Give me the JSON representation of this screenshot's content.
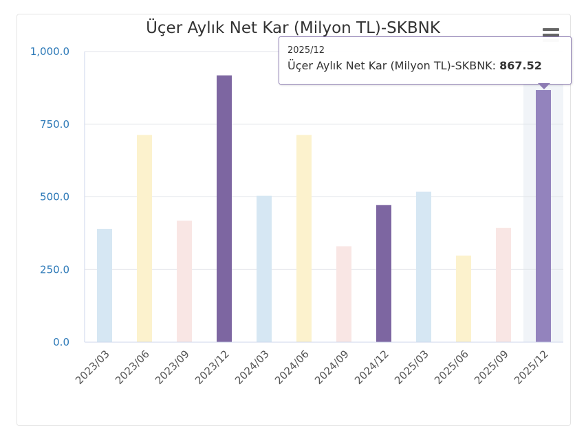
{
  "chart_data": {
    "type": "bar",
    "title": "Üçer Aylık Net Kar (Milyon TL)-SKBNK",
    "categories": [
      "2023/03",
      "2023/06",
      "2023/09",
      "2023/12",
      "2024/03",
      "2024/06",
      "2024/09",
      "2024/12",
      "2025/03",
      "2025/06",
      "2025/09",
      "2025/12"
    ],
    "series": [
      {
        "name": "Üçer Aylık Net Kar (Milyon TL)-SKBNK",
        "values": [
          390,
          713,
          418,
          918,
          504,
          713,
          330,
          472,
          518,
          298,
          393,
          867.52
        ]
      }
    ],
    "ylim": [
      0,
      1000
    ],
    "yticks": [
      "0.0",
      "250.0",
      "500.0",
      "750.0",
      "1,000.0"
    ],
    "xlabel": "",
    "ylabel": "",
    "grid": true,
    "legend": "none",
    "bar_colors": [
      "#d6e7f3",
      "#fcf2cd",
      "#f9e6e4",
      "#7d66a1",
      "#d6e7f3",
      "#fcf2cd",
      "#f9e6e4",
      "#7d66a1",
      "#d6e7f3",
      "#fcf2cd",
      "#f9e6e4",
      "#9383bd"
    ],
    "highlight_index": 11
  },
  "tooltip": {
    "category": "2025/12",
    "series_label": "Üçer Aylık Net Kar (Milyon TL)-SKBNK:",
    "value": "867.52"
  },
  "menu": {
    "icon": "hamburger-menu-icon"
  }
}
